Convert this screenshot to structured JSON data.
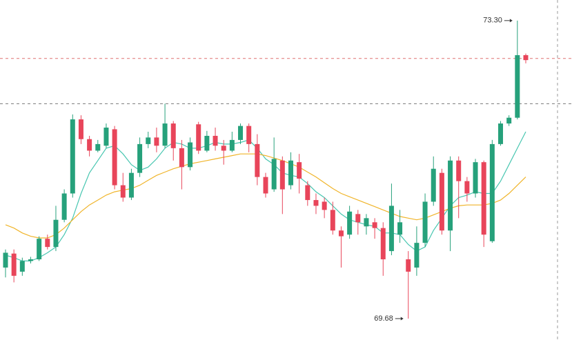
{
  "chart_data": {
    "type": "candlestick",
    "ylim": [
      69.42,
      73.55
    ],
    "up_color": "#26a17b",
    "down_color": "#e8455a",
    "open": [
      70.3,
      70.47,
      70.25,
      70.38,
      70.4,
      70.65,
      70.55,
      70.88,
      71.2,
      72.1,
      71.86,
      71.72,
      71.78,
      71.98,
      71.3,
      71.15,
      71.45,
      71.8,
      71.88,
      71.78,
      72.05,
      71.75,
      71.52,
      72.04,
      71.72,
      71.9,
      71.78,
      71.72,
      71.85,
      72.02,
      71.8,
      71.4,
      71.25,
      71.6,
      71.3,
      71.58,
      71.3,
      71.12,
      71.1,
      71.0,
      70.75,
      70.7,
      70.95,
      70.8,
      70.85,
      70.78,
      70.5,
      70.7,
      70.4,
      70.3,
      70.6,
      71.1,
      71.45,
      70.75,
      71.6,
      71.35,
      71.2,
      71.58,
      70.62,
      71.8,
      72.05,
      72.12,
      72.88
    ],
    "high": [
      70.52,
      70.52,
      70.42,
      70.43,
      70.68,
      70.7,
      71.05,
      71.25,
      72.16,
      72.15,
      71.9,
      71.85,
      72.05,
      72.02,
      71.45,
      71.5,
      71.88,
      71.95,
      72.0,
      72.29,
      72.08,
      71.85,
      71.88,
      72.07,
      71.96,
      72.0,
      71.85,
      71.95,
      72.05,
      72.05,
      71.92,
      71.45,
      71.88,
      71.65,
      71.7,
      71.68,
      71.35,
      71.2,
      71.15,
      71.1,
      70.8,
      71.05,
      71.0,
      70.95,
      70.9,
      70.85,
      71.32,
      71.0,
      70.5,
      70.8,
      71.2,
      71.65,
      71.5,
      71.65,
      71.65,
      71.4,
      71.62,
      71.6,
      71.85,
      72.08,
      72.15,
      73.3,
      72.9
    ],
    "low": [
      70.18,
      70.12,
      70.2,
      70.35,
      70.38,
      70.52,
      70.5,
      70.85,
      71.15,
      71.8,
      71.65,
      71.7,
      71.75,
      71.25,
      71.1,
      71.12,
      71.4,
      71.75,
      71.7,
      71.75,
      71.6,
      71.25,
      71.48,
      71.68,
      71.7,
      71.72,
      71.55,
      71.7,
      71.8,
      71.7,
      71.3,
      71.15,
      71.22,
      70.95,
      71.25,
      71.2,
      71.05,
      70.95,
      70.9,
      70.7,
      70.3,
      70.65,
      70.7,
      70.7,
      70.65,
      70.2,
      70.45,
      70.6,
      69.68,
      70.2,
      70.55,
      71.05,
      70.7,
      70.5,
      70.9,
      71.1,
      71.15,
      70.55,
      70.6,
      71.78,
      72.02,
      72.1,
      72.78
    ],
    "close": [
      70.48,
      70.2,
      70.38,
      70.4,
      70.65,
      70.55,
      70.88,
      71.2,
      72.1,
      71.86,
      71.72,
      71.8,
      72.0,
      71.3,
      71.15,
      71.45,
      71.8,
      71.88,
      71.78,
      72.05,
      71.75,
      71.52,
      71.82,
      71.72,
      71.9,
      71.78,
      71.72,
      71.85,
      72.02,
      71.8,
      71.4,
      71.2,
      71.62,
      71.25,
      71.6,
      71.38,
      71.12,
      71.05,
      71.0,
      70.75,
      70.68,
      70.98,
      70.85,
      70.9,
      70.78,
      70.4,
      71.05,
      70.85,
      70.25,
      70.6,
      71.1,
      71.5,
      70.75,
      71.6,
      71.35,
      71.2,
      71.58,
      70.7,
      71.8,
      72.05,
      72.12,
      72.88,
      72.82
    ],
    "series": [
      {
        "color": "#47c6b0",
        "values": [
          70.45,
          70.42,
          70.38,
          70.38,
          70.42,
          70.48,
          70.55,
          70.7,
          70.9,
          71.2,
          71.45,
          71.6,
          71.75,
          71.78,
          71.68,
          71.55,
          71.48,
          71.52,
          71.62,
          71.75,
          71.82,
          71.8,
          71.75,
          71.75,
          71.78,
          71.82,
          71.8,
          71.8,
          71.82,
          71.85,
          71.75,
          71.62,
          71.55,
          71.45,
          71.42,
          71.4,
          71.32,
          71.22,
          71.15,
          71.05,
          70.95,
          70.88,
          70.85,
          70.82,
          70.8,
          70.72,
          70.72,
          70.7,
          70.58,
          70.5,
          70.55,
          70.75,
          70.9,
          71.05,
          71.15,
          71.18,
          71.22,
          71.2,
          71.2,
          71.35,
          71.55,
          71.75,
          71.95
        ]
      },
      {
        "color": "#f0b429",
        "values": [
          70.82,
          70.78,
          70.72,
          70.68,
          70.66,
          70.66,
          70.7,
          70.78,
          70.88,
          70.98,
          71.06,
          71.12,
          71.18,
          71.22,
          71.24,
          71.26,
          71.3,
          71.36,
          71.42,
          71.46,
          71.5,
          71.53,
          71.56,
          71.58,
          71.6,
          71.62,
          71.64,
          71.66,
          71.68,
          71.68,
          71.68,
          71.66,
          71.63,
          71.6,
          71.56,
          71.52,
          71.46,
          71.4,
          71.33,
          71.26,
          71.2,
          71.16,
          71.12,
          71.08,
          71.04,
          71.0,
          70.96,
          70.92,
          70.9,
          70.88,
          70.9,
          70.94,
          70.98,
          71.02,
          71.05,
          71.06,
          71.06,
          71.06,
          71.08,
          71.12,
          71.2,
          71.3,
          71.4
        ]
      }
    ],
    "price_lines": [
      {
        "value": 72.84,
        "color": "#e07070"
      },
      {
        "value": 72.29,
        "color": "#777777"
      }
    ],
    "annotations": [
      "73.30",
      "69.68"
    ]
  }
}
